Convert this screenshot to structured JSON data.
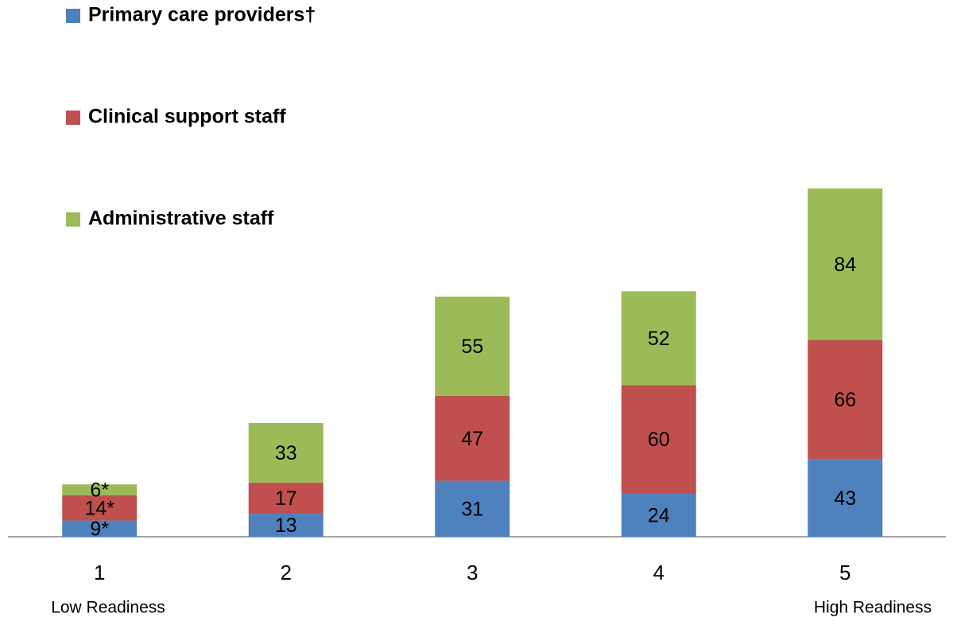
{
  "chart_data": {
    "type": "stacked_bar",
    "categories": [
      "1",
      "2",
      "3",
      "4",
      "5"
    ],
    "axis_end_labels": [
      "Low Readiness",
      "High Readiness"
    ],
    "series": [
      {
        "name": "Primary care providers†",
        "color": "#4f81bd",
        "values": [
          9,
          13,
          31,
          24,
          43
        ],
        "value_labels": [
          "9*",
          "13",
          "31",
          "24",
          "43"
        ]
      },
      {
        "name": "Clinical support staff",
        "color": "#c0504d",
        "values": [
          14,
          17,
          47,
          60,
          66
        ],
        "value_labels": [
          "14*",
          "17",
          "47",
          "60",
          "66"
        ]
      },
      {
        "name": "Administrative staff",
        "color": "#9bbb59",
        "values": [
          6,
          33,
          55,
          52,
          84
        ],
        "value_labels": [
          "6*",
          "33",
          "55",
          "52",
          "84"
        ]
      }
    ],
    "legend": "top-left"
  }
}
